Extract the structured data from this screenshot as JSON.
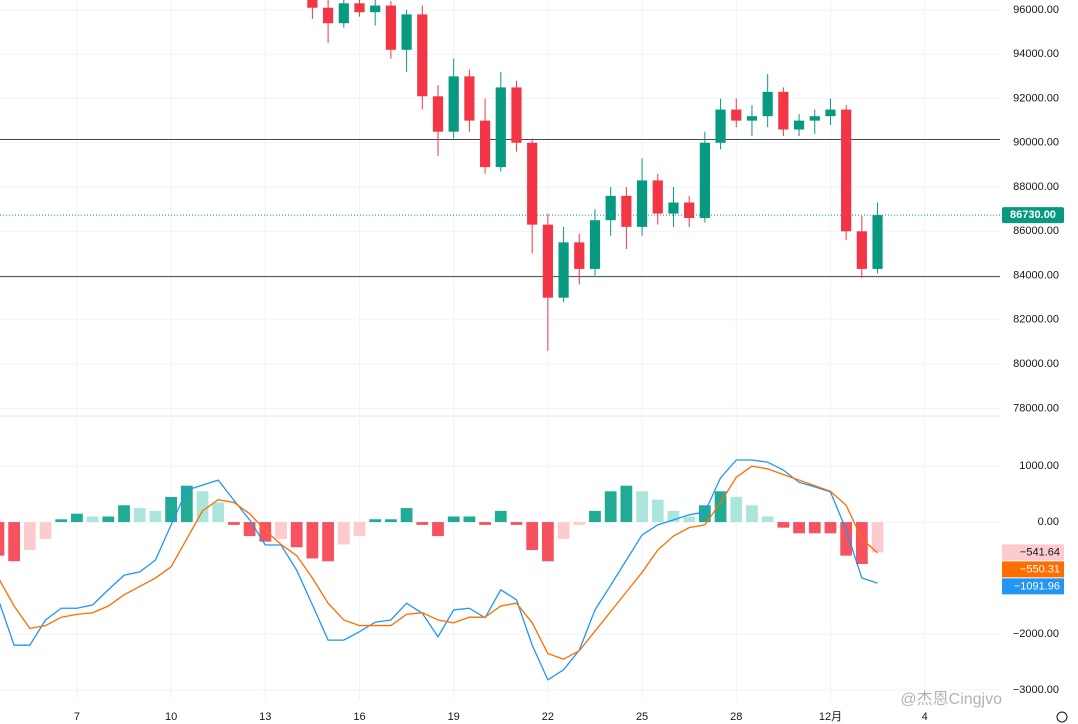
{
  "chart_data": [
    {
      "type": "candlestick",
      "up_color": "#089981",
      "down_color": "#f23645",
      "x": [
        14.5,
        15,
        15.5,
        16,
        16.5,
        17,
        17.5,
        18,
        18.5,
        19,
        19.5,
        20,
        20.5,
        21,
        21.5,
        22,
        22.5,
        23,
        23.5,
        24,
        24.5,
        25,
        25.5,
        26,
        26.5,
        27,
        27.5,
        28,
        28.5,
        29,
        29.5,
        30,
        30.5,
        31,
        31.5,
        32,
        32.5
      ],
      "open": [
        96600,
        96100,
        95400,
        96300,
        95900,
        96200,
        94200,
        95800,
        92100,
        90500,
        93000,
        91000,
        88900,
        92500,
        90000,
        86300,
        83000,
        85500,
        84300,
        86500,
        87600,
        86200,
        88300,
        86800,
        87300,
        86600,
        90000,
        91500,
        91000,
        91200,
        92300,
        90600,
        91000,
        91200,
        91500,
        86000,
        84300
      ],
      "high": [
        97000,
        96500,
        96800,
        96600,
        96700,
        96400,
        96000,
        96200,
        92600,
        93800,
        93300,
        92000,
        93200,
        92800,
        90200,
        86800,
        86200,
        85900,
        87000,
        88000,
        88000,
        89300,
        88600,
        88000,
        87600,
        90500,
        92000,
        92000,
        91700,
        93100,
        92500,
        91300,
        91500,
        92000,
        91700,
        86700,
        87300
      ],
      "low": [
        95600,
        94500,
        95200,
        95700,
        95300,
        93800,
        93200,
        91500,
        89400,
        90200,
        90500,
        88600,
        88700,
        89600,
        85000,
        80600,
        82800,
        83600,
        84000,
        85800,
        85200,
        85800,
        86300,
        86200,
        86200,
        86400,
        89700,
        90700,
        90300,
        90700,
        90300,
        90300,
        90400,
        90800,
        85600,
        83900,
        84100
      ],
      "close": [
        96100,
        95400,
        96300,
        95900,
        96200,
        94200,
        95800,
        92100,
        90500,
        93000,
        91000,
        88900,
        92500,
        90000,
        86300,
        83000,
        85500,
        84300,
        86500,
        87600,
        86200,
        88300,
        86800,
        87300,
        86600,
        90000,
        91500,
        91000,
        91200,
        92300,
        90600,
        91000,
        91200,
        91500,
        86000,
        84300,
        86730
      ],
      "last_label": "86730.00",
      "hlines": [
        90150,
        83950
      ],
      "hline_color": "#434651",
      "xlim": [
        4.55,
        36.4
      ],
      "ylim": [
        77700,
        96450
      ],
      "yticks": [
        {
          "value": 78000,
          "label": "78000.00"
        },
        {
          "value": 80000,
          "label": "80000.00"
        },
        {
          "value": 82000,
          "label": "82000.00"
        },
        {
          "value": 84000,
          "label": "84000.00"
        },
        {
          "value": 86000,
          "label": "86000.00"
        },
        {
          "value": 88000,
          "label": "88000.00"
        },
        {
          "value": 90000,
          "label": "90000.00"
        },
        {
          "value": 92000,
          "label": "92000.00"
        },
        {
          "value": 94000,
          "label": "94000.00"
        },
        {
          "value": 96000,
          "label": "96000.00"
        }
      ],
      "grid": true
    },
    {
      "type": "macd",
      "x": [
        4.5,
        5,
        5.5,
        6,
        6.5,
        7,
        7.5,
        8,
        8.5,
        9,
        9.5,
        10,
        10.5,
        11,
        11.5,
        12,
        12.5,
        13,
        13.5,
        14,
        14.5,
        15,
        15.5,
        16,
        16.5,
        17,
        17.5,
        18,
        18.5,
        19,
        19.5,
        20,
        20.5,
        21,
        21.5,
        22,
        22.5,
        23,
        23.5,
        24,
        24.5,
        25,
        25.5,
        26,
        26.5,
        27,
        27.5,
        28,
        28.5,
        29,
        29.5,
        30,
        30.5,
        31,
        31.5,
        32,
        32.5
      ],
      "histogram": {
        "values": [
          -600,
          -700,
          -500,
          -300,
          50,
          150,
          100,
          100,
          300,
          250,
          200,
          450,
          650,
          550,
          350,
          -50,
          -250,
          -350,
          -300,
          -450,
          -650,
          -700,
          -400,
          -250,
          50,
          50,
          250,
          -50,
          -250,
          100,
          100,
          -50,
          200,
          -50,
          -500,
          -700,
          -300,
          -50,
          200,
          550,
          650,
          550,
          400,
          200,
          100,
          300,
          550,
          450,
          300,
          100,
          -100,
          -200,
          -200,
          -200,
          -600,
          -750,
          -541.64
        ],
        "colors": [
          "#22ab94",
          "#ace5dc",
          "#f7525f",
          "#fccbcd"
        ],
        "label_color": "#fccbcd",
        "label_text_color": "#131722",
        "last_label": "−541.64"
      },
      "series": [
        {
          "color": "#2196f3",
          "values": [
            -1390,
            -2200,
            -2200,
            -1750,
            -1540,
            -1540,
            -1480,
            -1210,
            -950,
            -890,
            -680,
            -50,
            570,
            660,
            750,
            390,
            40,
            -410,
            -410,
            -860,
            -1480,
            -2110,
            -2110,
            -1960,
            -1790,
            -1750,
            -1450,
            -1630,
            -2050,
            -1570,
            -1540,
            -1710,
            -1210,
            -1390,
            -2200,
            -2820,
            -2640,
            -2290,
            -1570,
            -1130,
            -680,
            -230,
            -50,
            40,
            130,
            180,
            790,
            1110,
            1110,
            1070,
            930,
            710,
            630,
            540,
            -140,
            -1000,
            -1091.96
          ],
          "last_label": "−1091.96"
        },
        {
          "color": "#ff6d00",
          "values": [
            -1000,
            -1500,
            -1900,
            -1850,
            -1700,
            -1650,
            -1620,
            -1500,
            -1300,
            -1150,
            -1000,
            -800,
            -300,
            200,
            400,
            350,
            150,
            -150,
            -400,
            -600,
            -1000,
            -1450,
            -1750,
            -1850,
            -1850,
            -1850,
            -1650,
            -1620,
            -1750,
            -1800,
            -1700,
            -1700,
            -1500,
            -1450,
            -1800,
            -2350,
            -2450,
            -2300,
            -1950,
            -1600,
            -1250,
            -900,
            -500,
            -250,
            -100,
            -50,
            350,
            800,
            1000,
            950,
            850,
            750,
            650,
            550,
            300,
            -300,
            -550.31
          ],
          "last_label": "−550.31"
        }
      ],
      "xlim": [
        4.55,
        36.4
      ],
      "ylim": [
        -3180,
        1860
      ],
      "yticks": [
        {
          "value": 1000,
          "label": "1000.00"
        },
        {
          "value": 0,
          "label": "0.00"
        },
        {
          "value": -2000,
          "label": "−2000.00"
        },
        {
          "value": -3000,
          "label": "−3000.00"
        }
      ],
      "xticks": [
        7,
        10,
        13,
        16,
        19,
        22,
        25,
        28,
        {
          "value": 31,
          "label": "12月"
        },
        {
          "value": 34,
          "label": "4"
        }
      ],
      "grid": true
    }
  ],
  "watermark": "@杰恩Cingjvo"
}
